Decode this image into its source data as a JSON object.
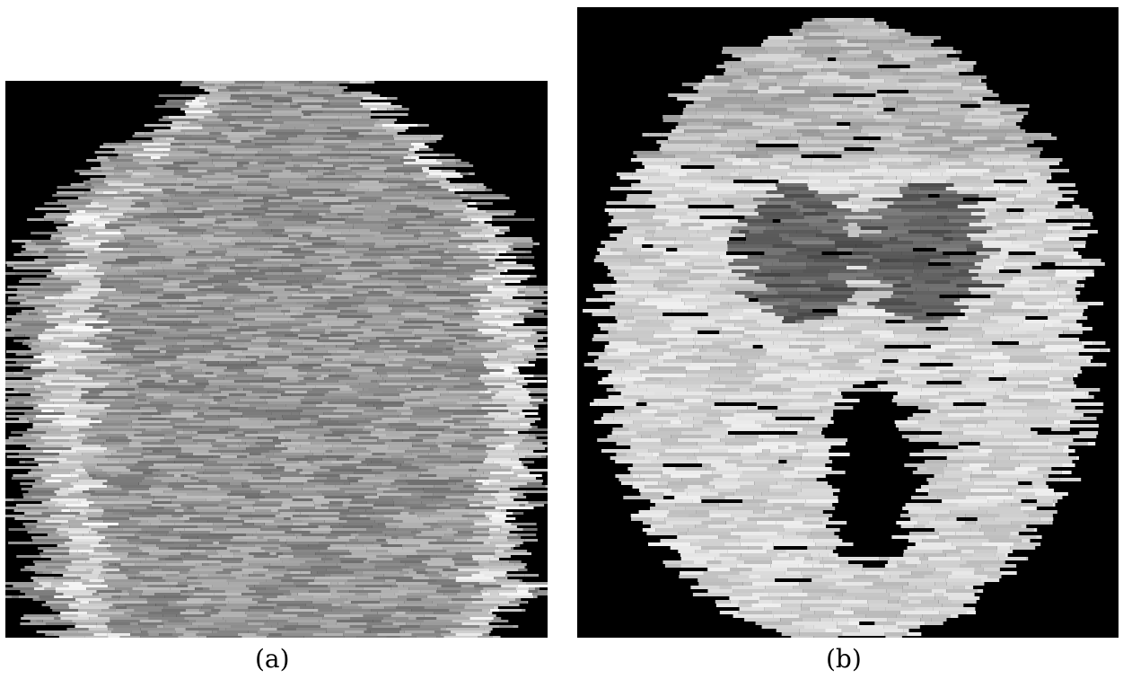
{
  "figure": {
    "panels": [
      {
        "id": "a",
        "caption": "(a)",
        "content": "brain-scan-image"
      },
      {
        "id": "b",
        "caption": "(b)",
        "content": "brain-scan-image"
      }
    ],
    "colors": {
      "background": "#000000",
      "page": "#ffffff"
    }
  }
}
